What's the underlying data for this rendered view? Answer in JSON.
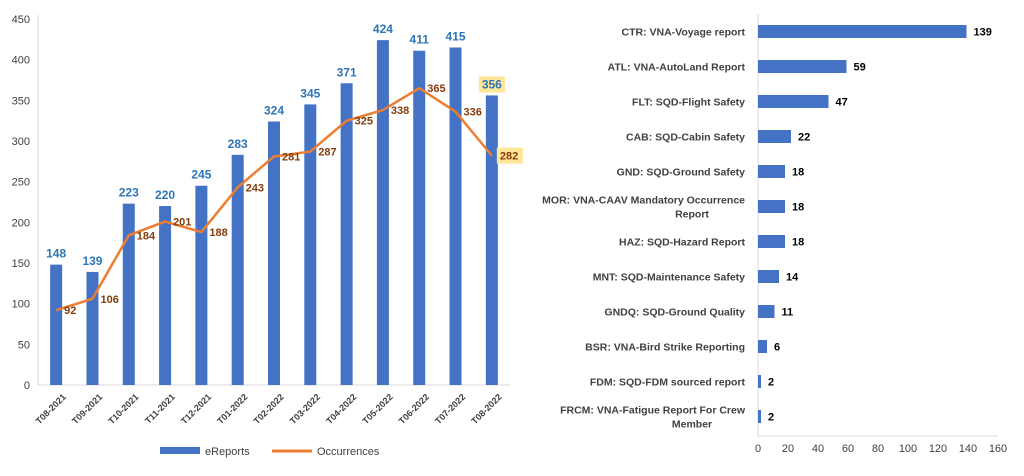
{
  "colors": {
    "bar_blue": "#4472C4",
    "line_orange": "#ED7D31",
    "label_blue": "#2E75B6",
    "label_brown": "#843C0C",
    "highlight": "#FFE699",
    "axis_text": "#404040",
    "grid": "#D9D9D9"
  },
  "chart_data": [
    {
      "type": "bar+line",
      "categories": [
        "T08-2021",
        "T09-2021",
        "T10-2021",
        "T11-2021",
        "T12-2021",
        "T01-2022",
        "T02-2022",
        "T03-2022",
        "T04-2022",
        "T05-2022",
        "T06-2022",
        "T07-2022",
        "T08-2022"
      ],
      "series": [
        {
          "name": "eReports",
          "kind": "bar",
          "values": [
            148,
            139,
            223,
            220,
            245,
            283,
            324,
            345,
            371,
            424,
            411,
            415,
            356
          ]
        },
        {
          "name": "Occurrences",
          "kind": "line",
          "values": [
            92,
            106,
            184,
            201,
            188,
            243,
            281,
            287,
            325,
            338,
            365,
            336,
            282
          ]
        }
      ],
      "ylim": [
        0,
        450
      ],
      "yticks": [
        0,
        50,
        100,
        150,
        200,
        250,
        300,
        350,
        400,
        450
      ],
      "legend_position": "bottom",
      "highlighted_last_labels": true
    },
    {
      "type": "bar",
      "orientation": "horizontal",
      "categories": [
        "CTR: VNA-Voyage report",
        "ATL: VNA-AutoLand Report",
        "FLT: SQD-Flight Safety",
        "CAB: SQD-Cabin Safety",
        "GND: SQD-Ground Safety",
        "MOR: VNA-CAAV Mandatory Occurrence Report",
        "HAZ: SQD-Hazard Report",
        "MNT: SQD-Maintenance Safety",
        "GNDQ: SQD-Ground Quality",
        "BSR: VNA-Bird Strike Reporting",
        "FDM: SQD-FDM sourced report",
        "FRCM: VNA-Fatigue Report For Crew Member"
      ],
      "category_lines": [
        [
          "CTR: VNA-Voyage report"
        ],
        [
          "ATL: VNA-AutoLand Report"
        ],
        [
          "FLT: SQD-Flight Safety"
        ],
        [
          "CAB: SQD-Cabin Safety"
        ],
        [
          "GND: SQD-Ground Safety"
        ],
        [
          "MOR: VNA-CAAV Mandatory Occurrence",
          "Report"
        ],
        [
          "HAZ: SQD-Hazard Report"
        ],
        [
          "MNT: SQD-Maintenance Safety"
        ],
        [
          "GNDQ: SQD-Ground Quality"
        ],
        [
          "BSR: VNA-Bird Strike Reporting"
        ],
        [
          "FDM: SQD-FDM sourced report"
        ],
        [
          "FRCM: VNA-Fatigue Report For Crew",
          "Member"
        ]
      ],
      "values": [
        139,
        59,
        47,
        22,
        18,
        18,
        18,
        14,
        11,
        6,
        2,
        2
      ],
      "xlim": [
        0,
        160
      ],
      "xticks": [
        0,
        20,
        40,
        60,
        80,
        100,
        120,
        140,
        160
      ]
    }
  ]
}
